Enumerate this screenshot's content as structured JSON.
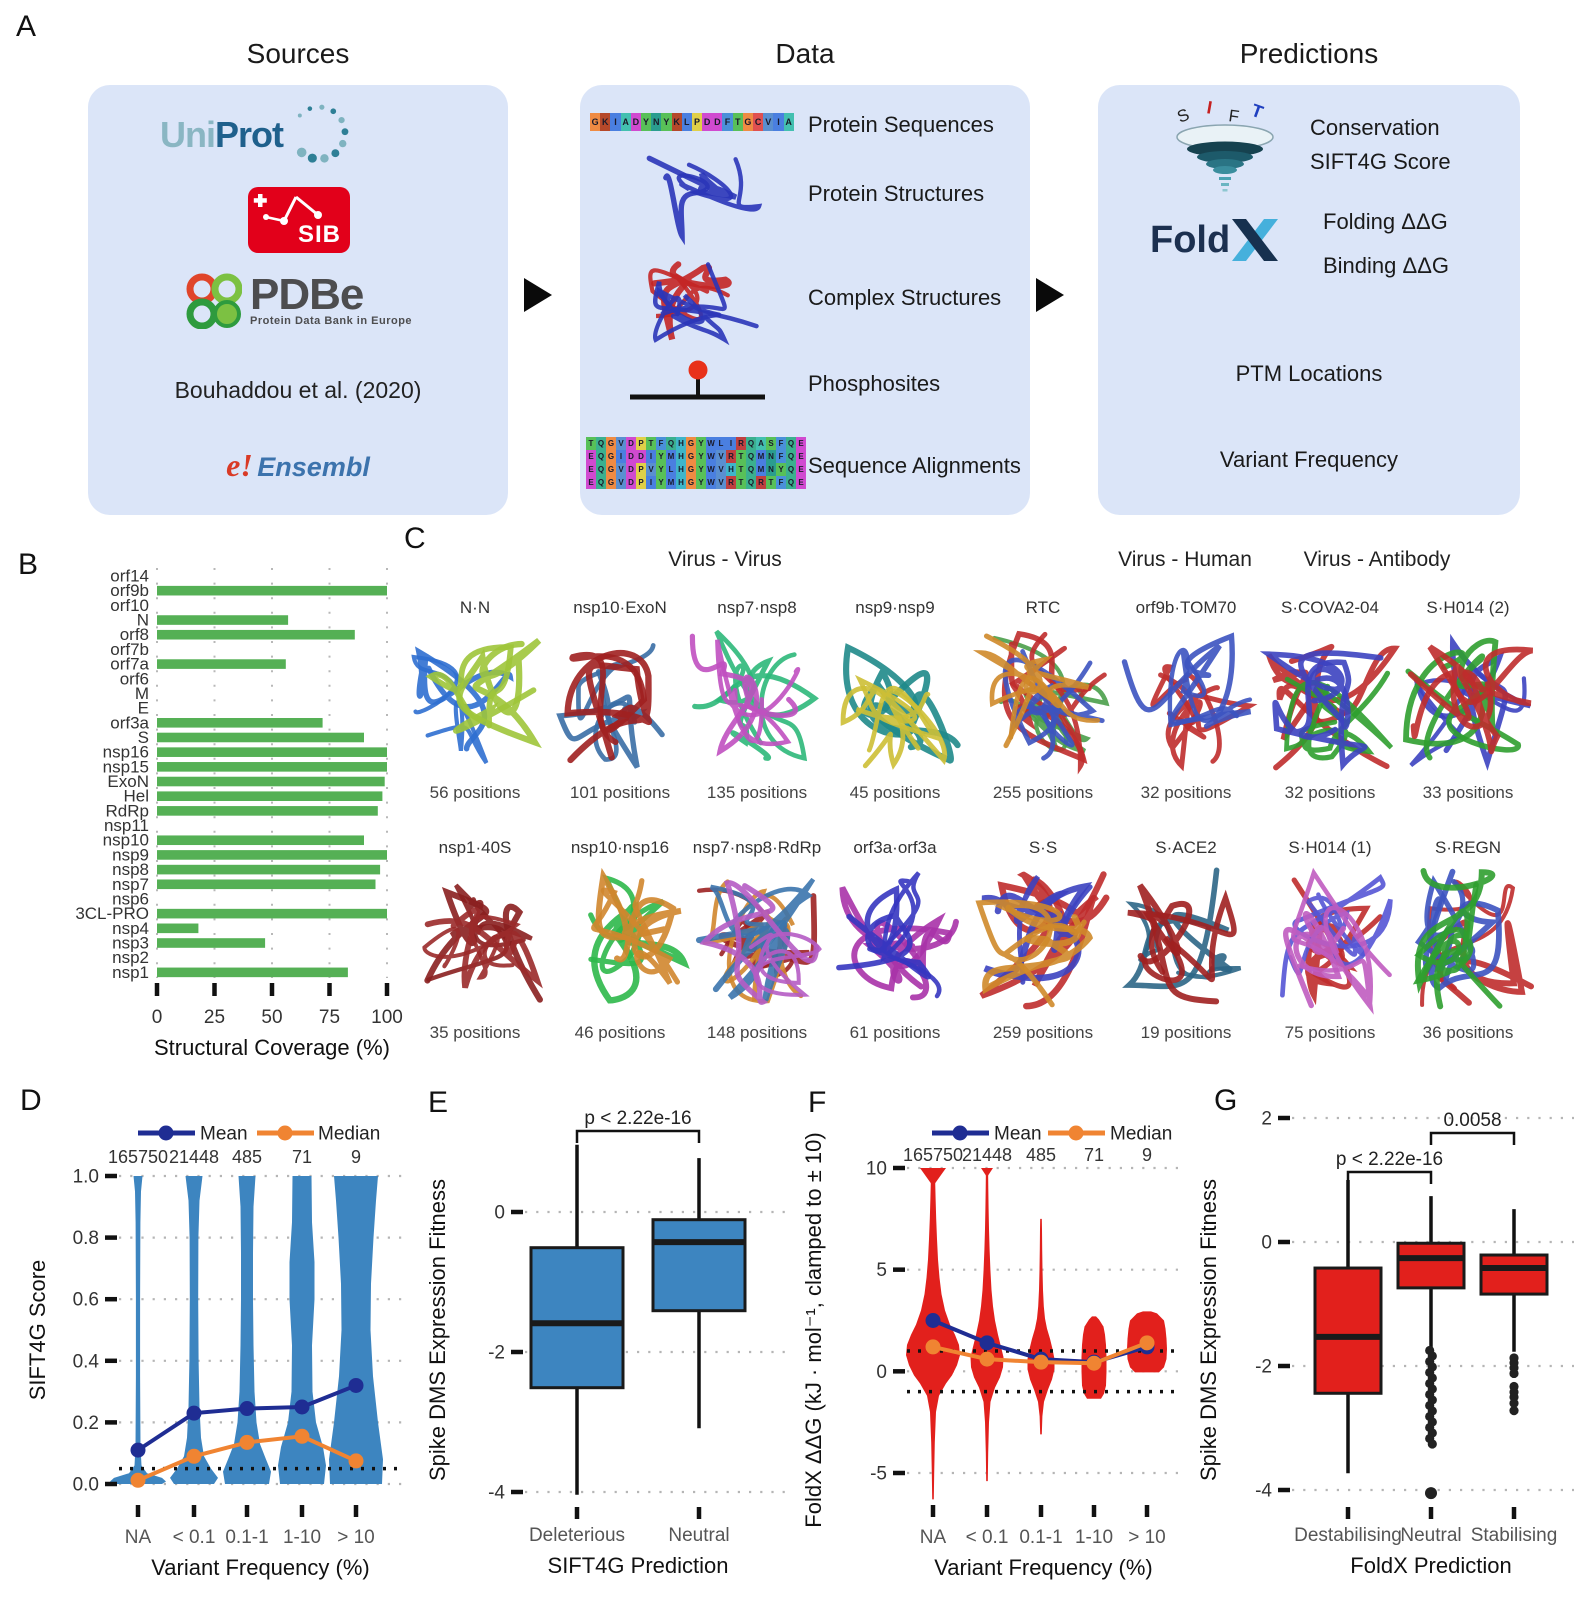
{
  "panels": {
    "A": "A",
    "B": "B",
    "C": "C",
    "D": "D",
    "E": "E",
    "F": "F",
    "G": "G"
  },
  "sources": {
    "title": "Sources",
    "uniprot_uni": "Uni",
    "uniprot_prot": "Prot",
    "sib": "SIB",
    "pdbe": "PDBe",
    "pdbe_sub": "Protein Data Bank in Europe",
    "citation": "Bouhaddou et al. (2020)",
    "ensembl_e": "e!",
    "ensembl": "Ensembl"
  },
  "data_panel": {
    "title": "Data",
    "sequence": "GKIADYNYKLPDDFTGCVIA",
    "alignment": [
      "TQGVDPTFQHGYWLIRQASFQE",
      "EQGIDDIYMHGYWVRTQMNFQE",
      "EQGVDPVYLHGYWVHTQMNYQE",
      "EQGVDPIYMHGYWVRTQRTFQE"
    ],
    "rows": [
      "Protein Sequences",
      "Protein Structures",
      "Complex Structures",
      "Phosphosites",
      "Sequence Alignments"
    ]
  },
  "predictions": {
    "title": "Predictions",
    "sift_letters": [
      "S",
      "I",
      "F",
      "T"
    ],
    "foldx_fold": "Fold",
    "foldx_x": "X",
    "items": [
      "Conservation",
      "SIFT4G Score",
      "Folding ΔΔG",
      "Binding ΔΔG",
      "PTM Locations",
      "Variant Frequency"
    ]
  },
  "panelC": {
    "groups": [
      {
        "label": "Virus - Virus"
      },
      {
        "label": "Virus - Human"
      },
      {
        "label": "Virus - Antibody"
      }
    ],
    "row1": [
      {
        "name": "N·N",
        "positions": "56 positions",
        "colors": [
          "#2f6fd0",
          "#9fc53a"
        ]
      },
      {
        "name": "nsp10·ExoN",
        "positions": "101 positions",
        "colors": [
          "#3a6ea5",
          "#a02020"
        ]
      },
      {
        "name": "nsp7·nsp8",
        "positions": "135 positions",
        "colors": [
          "#2eb87a",
          "#c050c0"
        ]
      },
      {
        "name": "nsp9·nsp9",
        "positions": "45 positions",
        "colors": [
          "#1f8a8a",
          "#cdbf35"
        ]
      },
      {
        "name": "RTC",
        "positions": "255 positions",
        "colors": [
          "#4a9e4a",
          "#bf2c2c",
          "#3c53c0",
          "#cf8a2a"
        ]
      },
      {
        "name": "orf9b·TOM70",
        "positions": "32 positions",
        "colors": [
          "#bf2c2c",
          "#3c53c0"
        ]
      },
      {
        "name": "S·COVA2-04",
        "positions": "32 positions",
        "colors": [
          "#bf2c2c",
          "#2f9e2f",
          "#3c43c0"
        ]
      },
      {
        "name": "S·H014 (2)",
        "positions": "33 positions",
        "colors": [
          "#3c43c0",
          "#2f9e2f",
          "#bf2c2c"
        ]
      }
    ],
    "row2": [
      {
        "name": "nsp1·40S",
        "positions": "35 positions",
        "colors": [
          "#8a1f1f",
          "#9a2a2a"
        ]
      },
      {
        "name": "nsp10·nsp16",
        "positions": "46 positions",
        "colors": [
          "#2db84a",
          "#d0862e"
        ]
      },
      {
        "name": "nsp7·nsp8·RdRp",
        "positions": "148 positions",
        "colors": [
          "#9c2222",
          "#d0862e",
          "#3b74ad",
          "#b55cc4"
        ]
      },
      {
        "name": "orf3a·orf3a",
        "positions": "61 positions",
        "colors": [
          "#a832a8",
          "#3636c0"
        ]
      },
      {
        "name": "S·S",
        "positions": "259 positions",
        "colors": [
          "#bf2c2c",
          "#3c43c0",
          "#cf8a2a"
        ]
      },
      {
        "name": "S·ACE2",
        "positions": "19 positions",
        "colors": [
          "#2c6686",
          "#a02020"
        ]
      },
      {
        "name": "S·H014 (1)",
        "positions": "75 positions",
        "colors": [
          "#bf2c2c",
          "#5555d5",
          "#c05cc0"
        ]
      },
      {
        "name": "S·REGN",
        "positions": "36 positions",
        "colors": [
          "#bf2c2c",
          "#3c53c0",
          "#2f9e2f"
        ]
      }
    ]
  },
  "chart_data": [
    {
      "panel": "B",
      "type": "bar",
      "orientation": "horizontal",
      "categories": [
        "orf14",
        "orf9b",
        "orf10",
        "N",
        "orf8",
        "orf7b",
        "orf7a",
        "orf6",
        "M",
        "E",
        "orf3a",
        "S",
        "nsp16",
        "nsp15",
        "ExoN",
        "Hel",
        "RdRp",
        "nsp11",
        "nsp10",
        "nsp9",
        "nsp8",
        "nsp7",
        "nsp6",
        "3CL-PRO",
        "nsp4",
        "nsp3",
        "nsp2",
        "nsp1"
      ],
      "values": [
        0,
        100,
        0,
        57,
        86,
        0,
        56,
        0,
        0,
        0,
        72,
        90,
        100,
        100,
        99,
        98,
        96,
        0,
        90,
        100,
        97,
        95,
        0,
        100,
        18,
        47,
        0,
        83
      ],
      "xlabel": "Structural Coverage (%)",
      "xticks": [
        0,
        25,
        50,
        75,
        100
      ],
      "xlim": [
        0,
        100
      ],
      "bar_color": "#55b055",
      "grid": "dotted vertical"
    },
    {
      "panel": "D",
      "type": "violin",
      "categories": [
        "NA",
        "< 0.1",
        "0.1-1",
        "1-10",
        "> 10"
      ],
      "counts": [
        "165750",
        "21448",
        "485",
        "71",
        "9"
      ],
      "series": [
        {
          "name": "Mean",
          "values": [
            0.11,
            0.23,
            0.245,
            0.25,
            0.32
          ],
          "color": "#1f2d93"
        },
        {
          "name": "Median",
          "values": [
            0.012,
            0.09,
            0.135,
            0.155,
            0.075
          ],
          "color": "#f08432"
        }
      ],
      "ylabel": "SIFT4G Score",
      "xlabel": "Variant Frequency (%)",
      "ylim": [
        0,
        1
      ],
      "yticks": [
        0,
        0.2,
        0.4,
        0.6,
        0.8,
        1
      ],
      "threshold_line_y": 0.05,
      "violin_color": "#3d85c0",
      "legend_position": "top"
    },
    {
      "panel": "E",
      "type": "boxplot",
      "categories": [
        "Deleterious",
        "Neutral"
      ],
      "boxes": [
        {
          "low": -4.04,
          "q1": -2.51,
          "median": -1.59,
          "q3": -0.51,
          "high": 0.96
        },
        {
          "low": -3.09,
          "q1": -1.41,
          "median": -0.43,
          "q3": -0.11,
          "high": 0.77
        }
      ],
      "p_value": "p < 2.22e-16",
      "ylabel": "Spike DMS Expression Fitness",
      "xlabel": "SIFT4G Prediction",
      "yticks": [
        0,
        -2,
        -4
      ],
      "ylim": [
        -4.4,
        1.6
      ],
      "box_color": "#3d85c0"
    },
    {
      "panel": "F",
      "type": "violin",
      "categories": [
        "NA",
        "< 0.1",
        "0.1-1",
        "1-10",
        "> 10"
      ],
      "counts": [
        "165750",
        "21448",
        "485",
        "71",
        "9"
      ],
      "series": [
        {
          "name": "Mean",
          "values": [
            2.5,
            1.4,
            0.6,
            0.45,
            1.2
          ],
          "color": "#1f2d93"
        },
        {
          "name": "Median",
          "values": [
            1.2,
            0.6,
            0.45,
            0.4,
            1.4
          ],
          "color": "#f08432"
        }
      ],
      "ylabel": "FoldX ΔΔG (kJ · mol⁻¹, clamped to ± 10)",
      "xlabel": "Variant Frequency (%)",
      "ylim": [
        -7,
        10.6
      ],
      "yticks": [
        10,
        5,
        0,
        -5
      ],
      "threshold_lines_y": [
        1,
        -1
      ],
      "violin_color": "#e2201c",
      "legend_position": "top"
    },
    {
      "panel": "G",
      "type": "boxplot",
      "categories": [
        "Destabilising",
        "Neutral",
        "Stabilising"
      ],
      "boxes": [
        {
          "low": -3.73,
          "q1": -2.44,
          "median": -1.53,
          "q3": -0.42,
          "high": 1.0,
          "outliers": []
        },
        {
          "low": -1.7,
          "q1": -0.74,
          "median": -0.26,
          "q3": -0.02,
          "high": 0.74,
          "outlier_column": [
            -1.75,
            -3.27
          ],
          "outliers": [
            -4.05
          ]
        },
        {
          "low": -1.77,
          "q1": -0.84,
          "median": -0.42,
          "q3": -0.21,
          "high": 0.53,
          "outliers": [
            -1.87,
            -1.95,
            -2.03,
            -2.12,
            -2.33,
            -2.42,
            -2.5,
            -2.6,
            -2.72
          ]
        }
      ],
      "p_values": [
        {
          "between": [
            "Destabilising",
            "Neutral"
          ],
          "label": "p < 2.22e-16"
        },
        {
          "between": [
            "Neutral",
            "Stabilising"
          ],
          "label": "0.0058"
        }
      ],
      "ylabel": "Spike DMS Expression Fitness",
      "xlabel": "FoldX Prediction",
      "yticks": [
        2,
        0,
        -2,
        -4
      ],
      "ylim": [
        -4.4,
        2.2
      ],
      "box_color": "#e2201c"
    }
  ]
}
